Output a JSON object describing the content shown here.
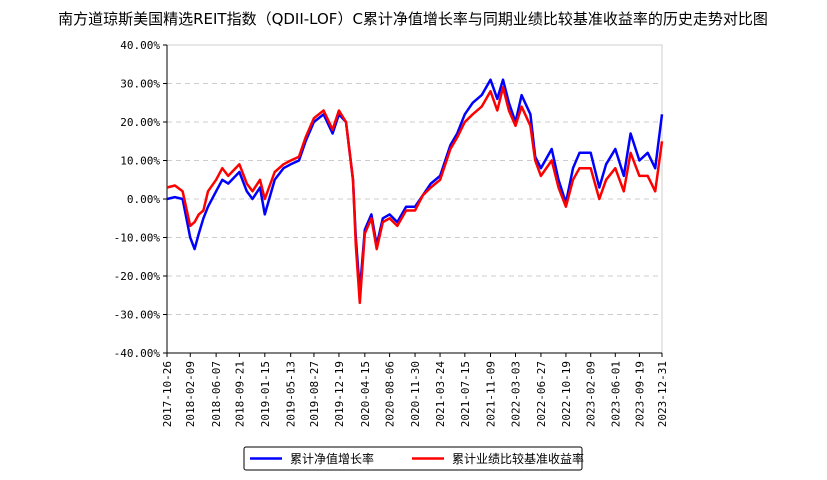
{
  "chart_data": {
    "type": "line",
    "title": "南方道琼斯美国精选REIT指数（QDII-LOF）C累计净值增长率与同期业绩比较基准收益率的历史走势对比图",
    "xlabel": "",
    "ylabel": "",
    "ylim": [
      -40,
      40
    ],
    "y_ticks": [
      40,
      30,
      20,
      10,
      0,
      -10,
      -20,
      -30,
      -40
    ],
    "y_tick_labels": [
      "40.00%",
      "30.00%",
      "20.00%",
      "10.00%",
      "0.00%",
      "-10.00%",
      "-20.00%",
      "-30.00%",
      "-40.00%"
    ],
    "x_tick_labels": [
      "2017-10-26",
      "2018-02-09",
      "2018-06-07",
      "2018-09-21",
      "2019-01-15",
      "2019-05-13",
      "2019-08-27",
      "2019-12-19",
      "2020-04-15",
      "2020-08-06",
      "2020-11-30",
      "2021-03-24",
      "2021-07-15",
      "2021-11-09",
      "2022-03-03",
      "2022-06-27",
      "2022-10-19",
      "2023-02-09",
      "2023-06-01",
      "2023-09-19",
      "2023-12-31"
    ],
    "grid": "horizontal-dashed",
    "legend_position": "bottom",
    "x": [
      "2017-10-26",
      "2017-12-01",
      "2018-01-05",
      "2018-02-09",
      "2018-03-01",
      "2018-03-20",
      "2018-04-10",
      "2018-05-01",
      "2018-06-07",
      "2018-07-05",
      "2018-08-01",
      "2018-09-21",
      "2018-10-25",
      "2018-11-20",
      "2018-12-24",
      "2019-01-15",
      "2019-03-01",
      "2019-04-10",
      "2019-05-13",
      "2019-06-20",
      "2019-07-20",
      "2019-08-27",
      "2019-10-10",
      "2019-11-20",
      "2019-12-19",
      "2020-01-20",
      "2020-02-21",
      "2020-03-05",
      "2020-03-23",
      "2020-04-15",
      "2020-05-15",
      "2020-06-08",
      "2020-07-06",
      "2020-08-06",
      "2020-09-10",
      "2020-10-20",
      "2020-11-30",
      "2021-01-05",
      "2021-02-10",
      "2021-03-24",
      "2021-05-10",
      "2021-06-10",
      "2021-07-15",
      "2021-08-20",
      "2021-09-30",
      "2021-11-09",
      "2021-12-10",
      "2022-01-05",
      "2022-02-01",
      "2022-03-03",
      "2022-03-31",
      "2022-05-10",
      "2022-06-01",
      "2022-06-27",
      "2022-08-15",
      "2022-09-15",
      "2022-10-19",
      "2022-11-20",
      "2022-12-20",
      "2023-02-09",
      "2023-03-20",
      "2023-04-20",
      "2023-06-01",
      "2023-07-10",
      "2023-08-10",
      "2023-09-19",
      "2023-10-27",
      "2023-11-30",
      "2023-12-31"
    ],
    "series": [
      {
        "name": "累计净值增长率",
        "color": "#0000ff",
        "values": [
          0,
          0.5,
          0,
          -10,
          -13,
          -9,
          -5,
          -2,
          2,
          5,
          4,
          7,
          2,
          0,
          3,
          -4,
          5,
          8,
          9,
          10,
          15,
          20,
          22,
          17,
          22,
          20,
          5,
          -10,
          -24,
          -8,
          -4,
          -12,
          -5,
          -4,
          -6,
          -2,
          -2,
          1,
          4,
          6,
          14,
          17,
          22,
          25,
          27,
          31,
          26,
          31,
          25,
          20,
          27,
          22,
          11,
          8,
          13,
          5,
          -1,
          8,
          12,
          12,
          3,
          9,
          13,
          6,
          17,
          10,
          12,
          8,
          22
        ]
      },
      {
        "name": "累计业绩比较基准收益率",
        "color": "#ff0000",
        "values": [
          3,
          3.5,
          2,
          -7,
          -6,
          -4,
          -3,
          2,
          5,
          8,
          6,
          9,
          4,
          2,
          5,
          0,
          7,
          9,
          10,
          11,
          16,
          21,
          23,
          18,
          23,
          20,
          5,
          -12,
          -27,
          -9,
          -5,
          -13,
          -6,
          -5,
          -7,
          -3,
          -3,
          1,
          3,
          5,
          13,
          16,
          20,
          22,
          24,
          28,
          23,
          29,
          23,
          19,
          24,
          19,
          10,
          6,
          10,
          3,
          -2,
          5,
          8,
          8,
          0,
          5,
          8,
          2,
          12,
          6,
          6,
          2,
          15
        ]
      }
    ]
  }
}
